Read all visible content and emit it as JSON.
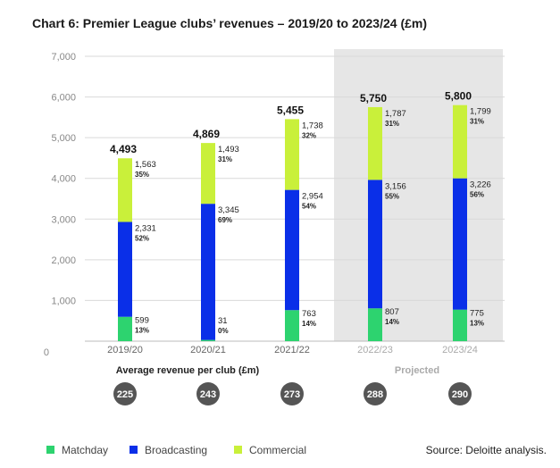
{
  "chart_data": {
    "type": "bar",
    "stacked": true,
    "title": "Chart 6: Premier League clubs’ revenues – 2019/20 to 2023/24 (£m)",
    "categories": [
      "2019/20",
      "2020/21",
      "2021/22",
      "2022/23",
      "2023/24"
    ],
    "projected_categories": [
      "2022/23",
      "2023/24"
    ],
    "ylim": [
      0,
      7000
    ],
    "yticks": [
      "0",
      "1,000",
      "2,000",
      "3,000",
      "4,000",
      "5,000",
      "6,000",
      "7,000"
    ],
    "grid": true,
    "totals": [
      "4,493",
      "4,869",
      "5,455",
      "5,750",
      "5,800"
    ],
    "series": [
      {
        "name": "Matchday",
        "color": "#2dd36f",
        "values": [
          599,
          31,
          763,
          807,
          775
        ],
        "labels": [
          "599",
          "31",
          "763",
          "807",
          "775"
        ],
        "percents": [
          "13%",
          "0%",
          "14%",
          "14%",
          "13%"
        ]
      },
      {
        "name": "Broadcasting",
        "color": "#0a2fe8",
        "values": [
          2331,
          3345,
          2954,
          3156,
          3226
        ],
        "labels": [
          "2,331",
          "3,345",
          "2,954",
          "3,156",
          "3,226"
        ],
        "percents": [
          "52%",
          "69%",
          "54%",
          "55%",
          "56%"
        ]
      },
      {
        "name": "Commercial",
        "color": "#c9f03a",
        "values": [
          1563,
          1493,
          1738,
          1787,
          1799
        ],
        "labels": [
          "1,563",
          "1,493",
          "1,738",
          "1,787",
          "1,799"
        ],
        "percents": [
          "35%",
          "31%",
          "32%",
          "31%",
          "31%"
        ]
      }
    ],
    "legend_position": "bottom-left",
    "avg_revenue_heading": "Average revenue per club (£m)",
    "projected_label": "Projected",
    "avg_revenue_per_club": [
      "225",
      "243",
      "273",
      "288",
      "290"
    ],
    "source": "Source: Deloitte analysis."
  },
  "colors": {
    "projected_band": "#e6e6e6",
    "grid": "#d9d9d9",
    "circle": "#555555"
  }
}
